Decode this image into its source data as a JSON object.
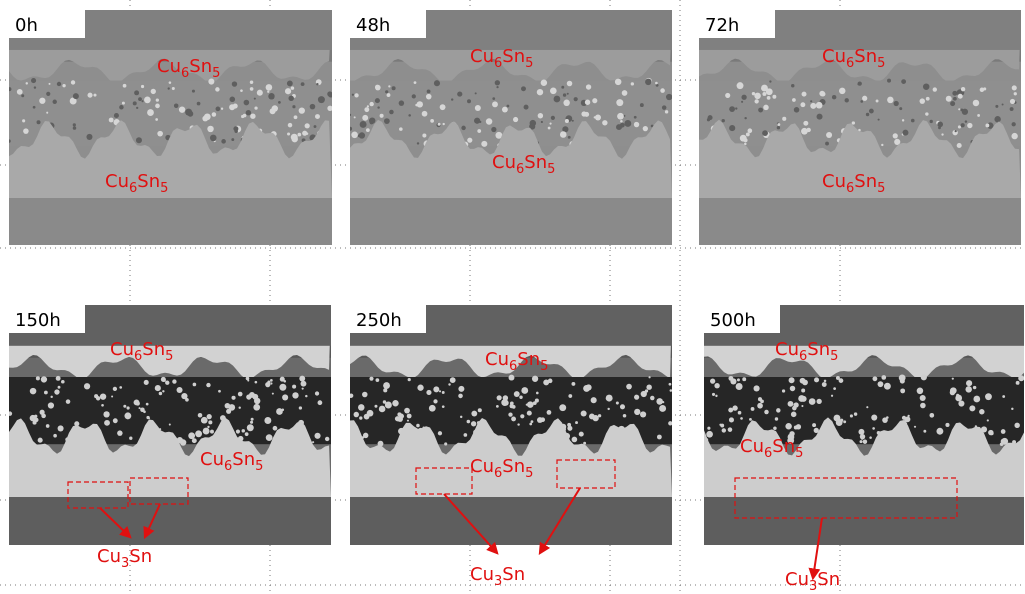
{
  "panels": [
    {
      "time": "0h",
      "labels": [
        {
          "parts": [
            "Cu",
            "6",
            "Sn",
            "5"
          ]
        },
        {
          "parts": [
            "Cu",
            "6",
            "Sn",
            "5"
          ]
        }
      ]
    },
    {
      "time": "48h",
      "labels": [
        {
          "parts": [
            "Cu",
            "6",
            "Sn",
            "5"
          ]
        },
        {
          "parts": [
            "Cu",
            "6",
            "Sn",
            "5"
          ]
        }
      ]
    },
    {
      "time": "72h",
      "labels": [
        {
          "parts": [
            "Cu",
            "6",
            "Sn",
            "5"
          ]
        },
        {
          "parts": [
            "Cu",
            "6",
            "Sn",
            "5"
          ]
        }
      ]
    },
    {
      "time": "150h",
      "labels": [
        {
          "parts": [
            "Cu",
            "6",
            "Sn",
            "5"
          ]
        },
        {
          "parts": [
            "Cu",
            "6",
            "Sn",
            "5"
          ]
        }
      ],
      "phase": {
        "parts": [
          "Cu",
          "3",
          "Sn"
        ]
      }
    },
    {
      "time": "250h",
      "labels": [
        {
          "parts": [
            "Cu",
            "6",
            "Sn",
            "5"
          ]
        },
        {
          "parts": [
            "Cu",
            "6",
            "Sn",
            "5"
          ]
        }
      ],
      "phase": {
        "parts": [
          "Cu",
          "3",
          "Sn"
        ]
      }
    },
    {
      "time": "500h",
      "labels": [
        {
          "parts": [
            "Cu",
            "6",
            "Sn",
            "5"
          ]
        },
        {
          "parts": [
            "Cu",
            "6",
            "Sn",
            "5"
          ]
        }
      ],
      "phase": {
        "parts": [
          "Cu",
          "3",
          "Sn"
        ]
      }
    }
  ]
}
